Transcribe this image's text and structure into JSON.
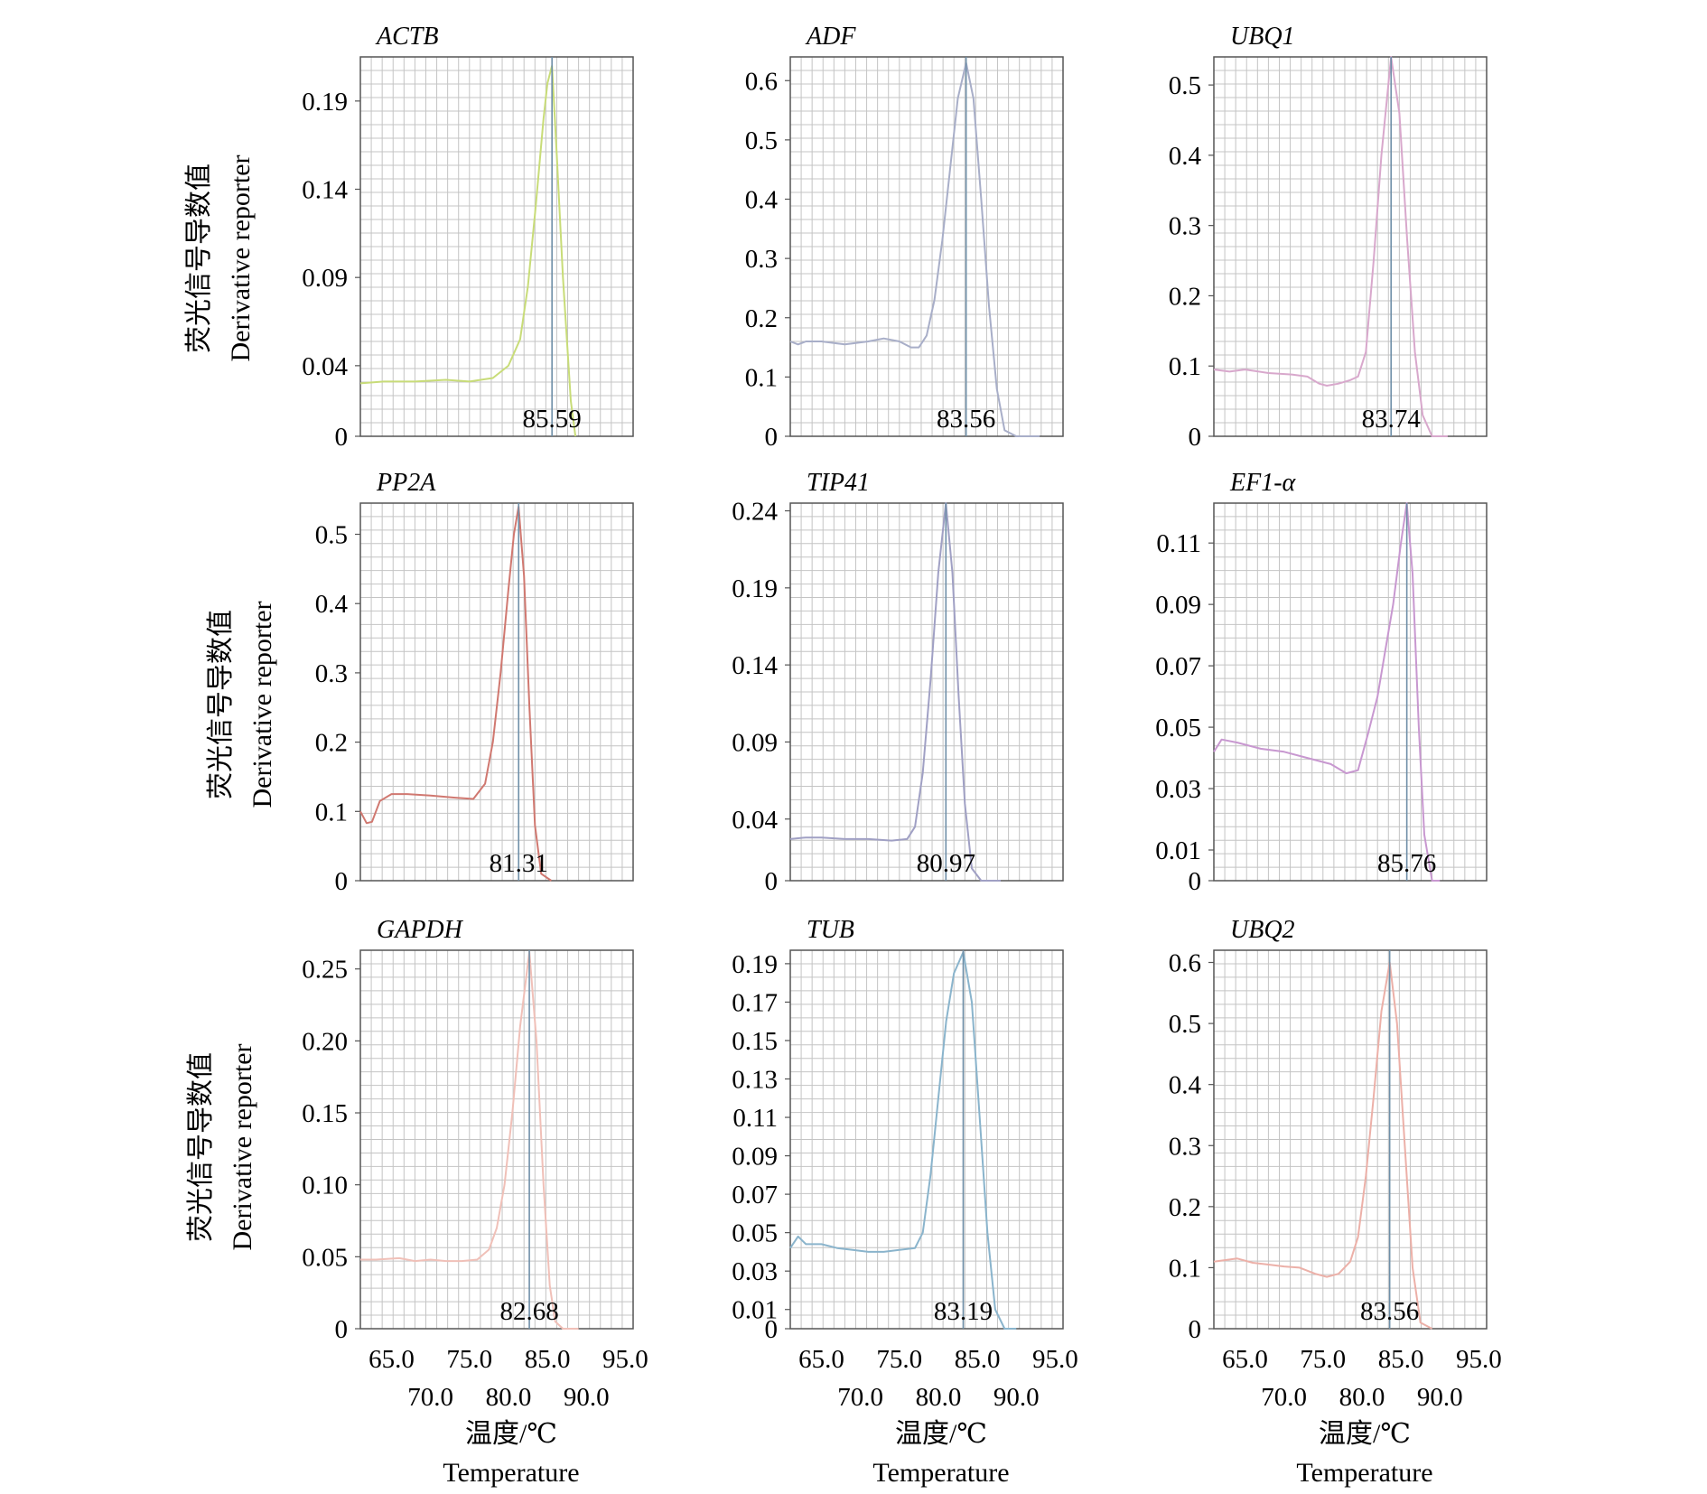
{
  "figure": {
    "y_axis_label_cn": "荧光信号导数值",
    "y_axis_label_en": "Derivative reporter",
    "x_axis_label_cn": "温度/℃",
    "x_axis_label_en": "Temperature"
  },
  "chart_data": [
    {
      "type": "line",
      "title": "ACTB",
      "xlabel": "温度/℃ Temperature",
      "ylabel": "荧光信号导数值 Derivative reporter",
      "xlim": [
        61,
        96
      ],
      "ylim": [
        0,
        0.215
      ],
      "grid": true,
      "color": "#c8dc78",
      "y_ticks": [
        "0",
        "0.04",
        "0.09",
        "0.14",
        "0.19"
      ],
      "y_tick_values": [
        0,
        0.04,
        0.09,
        0.14,
        0.19
      ],
      "x_ticks_upper": [
        "65.0",
        "75.0",
        "85.0",
        "95.0"
      ],
      "x_ticks_lower": [
        "70.0",
        "80.0",
        "90.0"
      ],
      "peak_label": "85.59",
      "peak_temp": 85.59,
      "series": [
        {
          "x": [
            61,
            64,
            68,
            72,
            75,
            78,
            80,
            81.5,
            82.5,
            83.5,
            84.5,
            85,
            85.59,
            86.2,
            87,
            88,
            88.6
          ],
          "y": [
            0.03,
            0.031,
            0.031,
            0.032,
            0.031,
            0.033,
            0.04,
            0.055,
            0.085,
            0.13,
            0.18,
            0.2,
            0.21,
            0.16,
            0.09,
            0.02,
            0
          ]
        }
      ]
    },
    {
      "type": "line",
      "title": "ADF",
      "xlabel": "温度/℃ Temperature",
      "ylabel": "荧光信号导数值 Derivative reporter",
      "xlim": [
        61,
        96
      ],
      "ylim": [
        0,
        0.64
      ],
      "grid": true,
      "color": "#a8aec8",
      "y_ticks": [
        "0",
        "0.1",
        "0.2",
        "0.3",
        "0.4",
        "0.5",
        "0.6"
      ],
      "y_tick_values": [
        0,
        0.1,
        0.2,
        0.3,
        0.4,
        0.5,
        0.6
      ],
      "x_ticks_upper": [
        "65.0",
        "75.0",
        "85.0",
        "95.0"
      ],
      "x_ticks_lower": [
        "70.0",
        "80.0",
        "90.0"
      ],
      "peak_label": "83.56",
      "peak_temp": 83.56,
      "series": [
        {
          "x": [
            61,
            62,
            63,
            65,
            68,
            71,
            73,
            75,
            76.5,
            77.5,
            78.5,
            79.5,
            80.5,
            81.5,
            82.5,
            83.56,
            84.5,
            85.5,
            86.5,
            87.5,
            88.5,
            90,
            93
          ],
          "y": [
            0.16,
            0.155,
            0.16,
            0.16,
            0.155,
            0.16,
            0.165,
            0.16,
            0.15,
            0.15,
            0.17,
            0.23,
            0.33,
            0.45,
            0.57,
            0.63,
            0.57,
            0.4,
            0.22,
            0.08,
            0.01,
            0,
            0
          ]
        }
      ]
    },
    {
      "type": "line",
      "title": "UBQ1",
      "xlabel": "温度/℃ Temperature",
      "ylabel": "荧光信号导数值 Derivative reporter",
      "xlim": [
        61,
        96
      ],
      "ylim": [
        0,
        0.54
      ],
      "grid": true,
      "color": "#d8a8cc",
      "y_ticks": [
        "0",
        "0.1",
        "0.2",
        "0.3",
        "0.4",
        "0.5"
      ],
      "y_tick_values": [
        0,
        0.1,
        0.2,
        0.3,
        0.4,
        0.5
      ],
      "x_ticks_upper": [
        "65.0",
        "75.0",
        "85.0",
        "95.0"
      ],
      "x_ticks_lower": [
        "70.0",
        "80.0",
        "90.0"
      ],
      "peak_label": "83.74",
      "peak_temp": 83.74,
      "series": [
        {
          "x": [
            61,
            63,
            65,
            68,
            71,
            73,
            74.5,
            75.5,
            77,
            78.5,
            79.5,
            80.5,
            81.5,
            82.5,
            83.74,
            84.8,
            85.8,
            86.8,
            87.8,
            89,
            91
          ],
          "y": [
            0.095,
            0.092,
            0.095,
            0.09,
            0.088,
            0.085,
            0.075,
            0.072,
            0.075,
            0.08,
            0.085,
            0.12,
            0.25,
            0.4,
            0.54,
            0.46,
            0.28,
            0.12,
            0.03,
            0,
            0
          ]
        }
      ]
    },
    {
      "type": "line",
      "title": "PP2A",
      "xlabel": "温度/℃ Temperature",
      "ylabel": "荧光信号导数值 Derivative reporter",
      "xlim": [
        61,
        96
      ],
      "ylim": [
        0,
        0.545
      ],
      "grid": true,
      "color": "#d07870",
      "y_ticks": [
        "0",
        "0.1",
        "0.2",
        "0.3",
        "0.4",
        "0.5"
      ],
      "y_tick_values": [
        0,
        0.1,
        0.2,
        0.3,
        0.4,
        0.5
      ],
      "x_ticks_upper": [
        "65.0",
        "75.0",
        "85.0",
        "95.0"
      ],
      "x_ticks_lower": [
        "70.0",
        "80.0",
        "90.0"
      ],
      "peak_label": "81.31",
      "peak_temp": 81.31,
      "series": [
        {
          "x": [
            61,
            61.8,
            62.5,
            63.5,
            65,
            67,
            70,
            73,
            75.5,
            77,
            78,
            79,
            80,
            80.7,
            81.31,
            82,
            82.7,
            83.4,
            84.2,
            85.5
          ],
          "y": [
            0.1,
            0.083,
            0.085,
            0.115,
            0.125,
            0.125,
            0.123,
            0.12,
            0.118,
            0.14,
            0.2,
            0.3,
            0.42,
            0.5,
            0.54,
            0.44,
            0.25,
            0.08,
            0.01,
            0
          ]
        }
      ]
    },
    {
      "type": "line",
      "title": "TIP41",
      "xlabel": "温度/℃ Temperature",
      "ylabel": "荧光信号导数值 Derivative reporter",
      "xlim": [
        61,
        96
      ],
      "ylim": [
        0,
        0.245
      ],
      "grid": true,
      "color": "#a0a0c4",
      "y_ticks": [
        "0",
        "0.04",
        "0.09",
        "0.14",
        "0.19",
        "0.24"
      ],
      "y_tick_values": [
        0,
        0.04,
        0.09,
        0.14,
        0.19,
        0.24
      ],
      "x_ticks_upper": [
        "65.0",
        "75.0",
        "85.0",
        "95.0"
      ],
      "x_ticks_lower": [
        "70.0",
        "80.0",
        "90.0"
      ],
      "peak_label": "80.97",
      "peak_temp": 80.97,
      "series": [
        {
          "x": [
            61,
            63,
            65,
            68,
            71,
            74,
            76,
            77,
            78,
            79,
            80,
            80.97,
            81.8,
            82.6,
            83.4,
            84.3,
            85.5,
            88
          ],
          "y": [
            0.027,
            0.028,
            0.028,
            0.027,
            0.027,
            0.026,
            0.027,
            0.035,
            0.07,
            0.13,
            0.2,
            0.245,
            0.2,
            0.12,
            0.05,
            0.008,
            0,
            0
          ]
        }
      ]
    },
    {
      "type": "line",
      "title": "EF1-α",
      "xlabel": "温度/℃ Temperature",
      "ylabel": "荧光信号导数值 Derivative reporter",
      "xlim": [
        61,
        96
      ],
      "ylim": [
        0,
        0.123
      ],
      "grid": true,
      "color": "#c898d0",
      "y_ticks": [
        "0",
        "0.01",
        "0.03",
        "0.05",
        "0.07",
        "0.09",
        "0.11"
      ],
      "y_tick_values": [
        0,
        0.01,
        0.03,
        0.05,
        0.07,
        0.09,
        0.11
      ],
      "x_ticks_upper": [
        "65.0",
        "75.0",
        "85.0",
        "95.0"
      ],
      "x_ticks_lower": [
        "70.0",
        "80.0",
        "90.0"
      ],
      "peak_label": "85.76",
      "peak_temp": 85.76,
      "series": [
        {
          "x": [
            61,
            62,
            64,
            67,
            70,
            73,
            76,
            78,
            79.5,
            80.8,
            82,
            83,
            84,
            85,
            85.76,
            86.5,
            87.3,
            88,
            89,
            90
          ],
          "y": [
            0.042,
            0.046,
            0.045,
            0.043,
            0.042,
            0.04,
            0.038,
            0.035,
            0.036,
            0.048,
            0.06,
            0.075,
            0.09,
            0.11,
            0.123,
            0.1,
            0.05,
            0.015,
            0,
            0
          ]
        }
      ]
    },
    {
      "type": "line",
      "title": "GAPDH",
      "xlabel": "温度/℃ Temperature",
      "ylabel": "荧光信号导数值 Derivative reporter",
      "xlim": [
        61,
        96
      ],
      "ylim": [
        0,
        0.263
      ],
      "grid": true,
      "color": "#f0c0b8",
      "y_ticks": [
        "0",
        "0.05",
        "0.10",
        "0.15",
        "0.20",
        "0.25"
      ],
      "y_tick_values": [
        0,
        0.05,
        0.1,
        0.15,
        0.2,
        0.25
      ],
      "x_ticks_upper": [
        "65.0",
        "75.0",
        "85.0",
        "95.0"
      ],
      "x_ticks_lower": [
        "70.0",
        "80.0",
        "90.0"
      ],
      "peak_label": "82.68",
      "peak_temp": 82.68,
      "series": [
        {
          "x": [
            61,
            63,
            66,
            68,
            70,
            72,
            74,
            76,
            77.5,
            78.5,
            79.5,
            80.5,
            81.5,
            82.68,
            83.6,
            84.5,
            85.3,
            86,
            87,
            89
          ],
          "y": [
            0.048,
            0.048,
            0.049,
            0.047,
            0.048,
            0.047,
            0.047,
            0.048,
            0.055,
            0.07,
            0.1,
            0.15,
            0.21,
            0.262,
            0.2,
            0.1,
            0.03,
            0.005,
            0,
            0
          ]
        }
      ]
    },
    {
      "type": "line",
      "title": "TUB",
      "xlabel": "温度/℃ Temperature",
      "ylabel": "荧光信号导数值 Derivative reporter",
      "xlim": [
        61,
        96
      ],
      "ylim": [
        0,
        0.197
      ],
      "grid": true,
      "color": "#8ab4cc",
      "y_ticks": [
        "0",
        "0.01",
        "0.03",
        "0.05",
        "0.07",
        "0.09",
        "0.11",
        "0.13",
        "0.15",
        "0.17",
        "0.19"
      ],
      "y_tick_values": [
        0,
        0.01,
        0.03,
        0.05,
        0.07,
        0.09,
        0.11,
        0.13,
        0.15,
        0.17,
        0.19
      ],
      "x_ticks_upper": [
        "65.0",
        "75.0",
        "85.0",
        "95.0"
      ],
      "x_ticks_lower": [
        "70.0",
        "80.0",
        "90.0"
      ],
      "peak_label": "83.19",
      "peak_temp": 83.19,
      "series": [
        {
          "x": [
            61,
            62,
            63,
            65,
            67,
            69,
            71,
            73,
            75,
            77,
            78,
            79,
            80,
            81,
            82,
            83.19,
            84.3,
            85.3,
            86.3,
            87.3,
            88.5,
            90
          ],
          "y": [
            0.042,
            0.048,
            0.044,
            0.044,
            0.042,
            0.041,
            0.04,
            0.04,
            0.041,
            0.042,
            0.05,
            0.08,
            0.12,
            0.16,
            0.185,
            0.196,
            0.17,
            0.11,
            0.05,
            0.01,
            0,
            0
          ]
        }
      ]
    },
    {
      "type": "line",
      "title": "UBQ2",
      "xlabel": "温度/℃ Temperature",
      "ylabel": "荧光信号导数值 Derivative reporter",
      "xlim": [
        61,
        96
      ],
      "ylim": [
        0,
        0.62
      ],
      "grid": true,
      "color": "#ecb0a8",
      "y_ticks": [
        "0",
        "0.1",
        "0.2",
        "0.3",
        "0.4",
        "0.5",
        "0.6"
      ],
      "y_tick_values": [
        0,
        0.1,
        0.2,
        0.3,
        0.4,
        0.5,
        0.6
      ],
      "x_ticks_upper": [
        "65.0",
        "75.0",
        "85.0",
        "95.0"
      ],
      "x_ticks_lower": [
        "70.0",
        "80.0",
        "90.0"
      ],
      "peak_label": "83.56",
      "peak_temp": 83.56,
      "series": [
        {
          "x": [
            61,
            64,
            66,
            68,
            70,
            72,
            74,
            75.5,
            77,
            78.5,
            79.5,
            80.5,
            81.5,
            82.5,
            83.56,
            84.5,
            85.5,
            86.5,
            87.5,
            89
          ],
          "y": [
            0.11,
            0.115,
            0.108,
            0.105,
            0.102,
            0.1,
            0.09,
            0.085,
            0.09,
            0.11,
            0.15,
            0.25,
            0.38,
            0.52,
            0.6,
            0.5,
            0.3,
            0.1,
            0.01,
            0
          ]
        }
      ]
    }
  ]
}
